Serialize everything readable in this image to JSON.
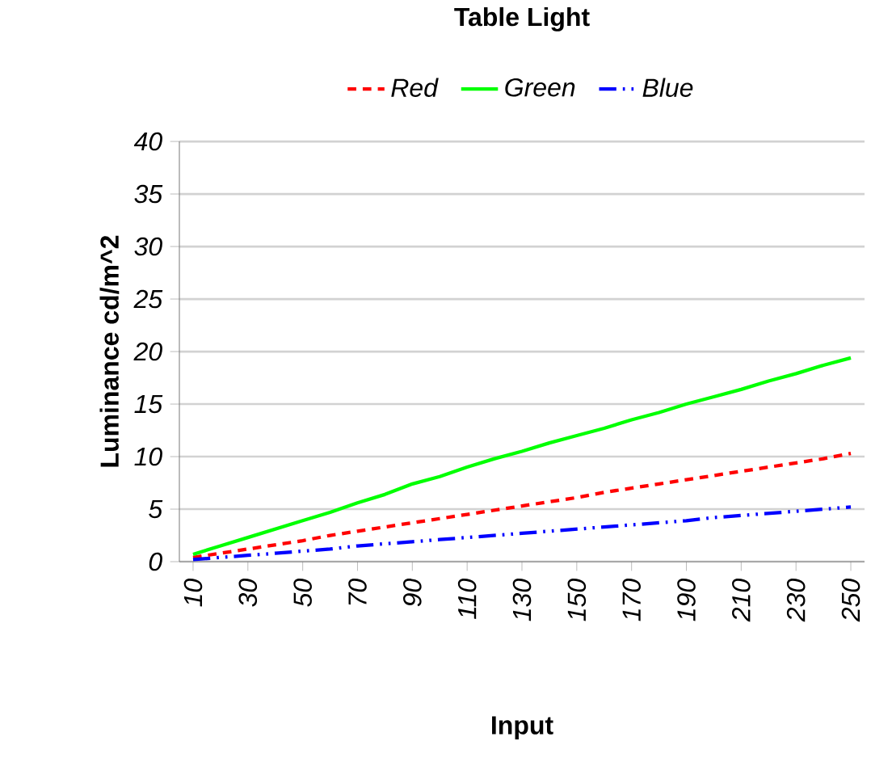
{
  "chart_data": {
    "type": "line",
    "title": "Table Light",
    "xlabel": "Input",
    "ylabel": "Luminance cd/m^2",
    "x": [
      10,
      20,
      30,
      40,
      50,
      60,
      70,
      80,
      90,
      100,
      110,
      120,
      130,
      140,
      150,
      160,
      170,
      180,
      190,
      200,
      210,
      220,
      230,
      240,
      250
    ],
    "series": [
      {
        "name": "Red",
        "color": "#ff0000",
        "line_style": "dashed",
        "values": [
          0.4,
          0.8,
          1.2,
          1.6,
          2.0,
          2.5,
          2.9,
          3.3,
          3.7,
          4.1,
          4.5,
          4.9,
          5.3,
          5.7,
          6.1,
          6.6,
          7.0,
          7.4,
          7.8,
          8.2,
          8.6,
          9.0,
          9.4,
          9.8,
          10.3
        ]
      },
      {
        "name": "Green",
        "color": "#00ff00",
        "line_style": "solid",
        "values": [
          0.7,
          1.5,
          2.3,
          3.1,
          3.9,
          4.7,
          5.6,
          6.4,
          7.4,
          8.1,
          9.0,
          9.8,
          10.5,
          11.3,
          12.0,
          12.7,
          13.5,
          14.2,
          15.0,
          15.7,
          16.4,
          17.2,
          17.9,
          18.7,
          19.4
        ]
      },
      {
        "name": "Blue",
        "color": "#0000ff",
        "line_style": "dashdot",
        "values": [
          0.2,
          0.4,
          0.6,
          0.8,
          1.0,
          1.2,
          1.5,
          1.7,
          1.9,
          2.1,
          2.3,
          2.5,
          2.7,
          2.9,
          3.1,
          3.3,
          3.5,
          3.7,
          3.9,
          4.2,
          4.4,
          4.6,
          4.8,
          5.0,
          5.2
        ]
      }
    ],
    "xlim": [
      5,
      255
    ],
    "xticks": [
      10,
      30,
      50,
      70,
      90,
      110,
      130,
      150,
      170,
      190,
      210,
      230,
      250
    ],
    "ylim": [
      0,
      40
    ],
    "yticks": [
      0,
      5,
      10,
      15,
      20,
      25,
      30,
      35,
      40
    ],
    "grid": "y",
    "legend": "top",
    "marker": "none"
  }
}
